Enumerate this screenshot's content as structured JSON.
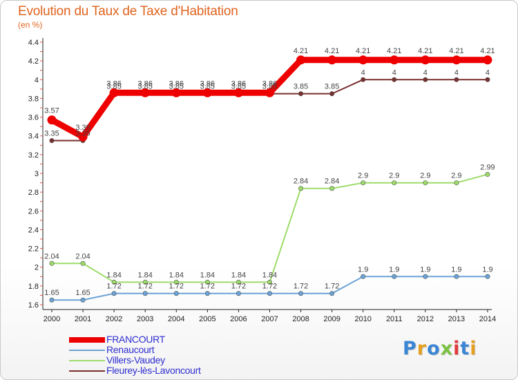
{
  "title": "Evolution du Taux de Taxe d'Habitation",
  "subtitle": "(en %)",
  "logo": {
    "text": "Proxiti",
    "letter_colors": [
      "#3a86d4",
      "#e6a020",
      "#3a86d4",
      "#7cc242",
      "#e23b3b",
      "#3a86d4",
      "#e6a020"
    ]
  },
  "chart_data": {
    "type": "line",
    "x": [
      "2000",
      "2001",
      "2002",
      "2003",
      "2004",
      "2005",
      "2006",
      "2007",
      "2008",
      "2009",
      "2010",
      "2011",
      "2012",
      "2013",
      "2014"
    ],
    "ylim": [
      1.6,
      4.4
    ],
    "yticks": [
      1.6,
      1.8,
      2,
      2.2,
      2.4,
      2.6,
      2.8,
      3,
      3.2,
      3.4,
      3.6,
      3.8,
      4,
      4.2,
      4.4
    ],
    "grid": false,
    "legend_position": "bottom-left",
    "series": [
      {
        "name": "FRANCOURT",
        "color": "#ee0000",
        "values": [
          3.57,
          3.39,
          3.86,
          3.86,
          3.86,
          3.86,
          3.86,
          3.86,
          4.21,
          4.21,
          4.21,
          4.21,
          4.21,
          4.21,
          4.21
        ],
        "labels": [
          "3.57",
          "3.39",
          "3.86",
          "3.86",
          "3.86",
          "3.86",
          "3.86",
          "3.86",
          "4.21",
          "4.21",
          "4.21",
          "4.21",
          "4.21",
          "4.21",
          "4.21"
        ]
      },
      {
        "name": "Renaucourt",
        "color": "#6aa3d6",
        "values": [
          1.65,
          1.65,
          1.72,
          1.72,
          1.72,
          1.72,
          1.72,
          1.72,
          1.72,
          1.72,
          1.9,
          1.9,
          1.9,
          1.9,
          1.9
        ],
        "labels": [
          "1.65",
          "1.65",
          "1.72",
          "1.72",
          "1.72",
          "1.72",
          "1.72",
          "1.72",
          "1.72",
          "1.72",
          "1.9",
          "1.9",
          "1.9",
          "1.9",
          "1.9"
        ]
      },
      {
        "name": "Villers-Vaudey",
        "color": "#9ddc6a",
        "values": [
          2.04,
          2.04,
          1.84,
          1.84,
          1.84,
          1.84,
          1.84,
          1.84,
          2.84,
          2.84,
          2.9,
          2.9,
          2.9,
          2.9,
          2.99
        ],
        "labels": [
          "2.04",
          "2.04",
          "1.84",
          "1.84",
          "1.84",
          "1.84",
          "1.84",
          "1.84",
          "2.84",
          "2.84",
          "2.9",
          "2.9",
          "2.9",
          "2.9",
          "2.99"
        ]
      },
      {
        "name": "Fleurey-lès-Lavoncourt",
        "color": "#7a2e2e",
        "values": [
          3.35,
          3.35,
          3.85,
          3.85,
          3.85,
          3.85,
          3.85,
          3.85,
          3.85,
          3.85,
          4,
          4,
          4,
          4,
          4
        ],
        "labels": [
          "3.35",
          "3.35",
          "3.85",
          "3.85",
          "3.85",
          "3.85",
          "3.85",
          "3.85",
          "3.85",
          "3.85",
          "4",
          "4",
          "4",
          "4",
          "4"
        ]
      }
    ]
  }
}
